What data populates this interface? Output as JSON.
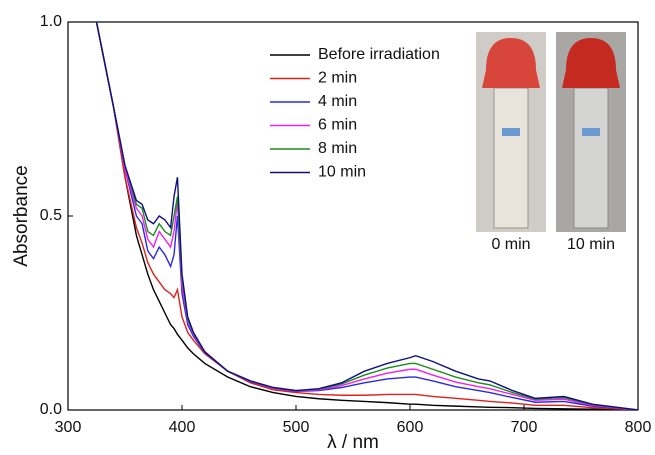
{
  "chart_data": {
    "type": "line",
    "x_label": "λ / nm",
    "y_label": "Absorbance",
    "xlim": [
      300,
      800
    ],
    "xticks": [
      300,
      400,
      500,
      600,
      700,
      800
    ],
    "ylim": [
      0,
      1
    ],
    "yticks": [
      {
        "value": 0,
        "label": "0.0"
      },
      {
        "value": 0.5,
        "label": "0.5"
      },
      {
        "value": 1,
        "label": "1.0"
      }
    ],
    "legend": "top",
    "x": [
      325,
      340,
      350,
      360,
      365,
      370,
      375,
      380,
      385,
      390,
      393,
      396,
      400,
      405,
      410,
      420,
      440,
      460,
      480,
      500,
      520,
      540,
      560,
      580,
      600,
      605,
      620,
      640,
      660,
      670,
      690,
      710,
      735,
      760,
      800
    ],
    "series": [
      {
        "name": "Before irradiation",
        "color": "#000000",
        "values": [
          1.0,
          0.78,
          0.6,
          0.45,
          0.4,
          0.35,
          0.31,
          0.28,
          0.25,
          0.22,
          0.21,
          0.195,
          0.18,
          0.16,
          0.145,
          0.12,
          0.085,
          0.06,
          0.045,
          0.035,
          0.029,
          0.025,
          0.022,
          0.019,
          0.015,
          0.015,
          0.012,
          0.01,
          0.008,
          0.007,
          0.006,
          0.004,
          0.003,
          0.002,
          0
        ]
      },
      {
        "name": "2 min",
        "color": "#e0201c",
        "values": [
          1.0,
          0.78,
          0.6,
          0.47,
          0.43,
          0.38,
          0.35,
          0.33,
          0.31,
          0.3,
          0.29,
          0.31,
          0.24,
          0.2,
          0.18,
          0.145,
          0.1,
          0.07,
          0.052,
          0.045,
          0.04,
          0.038,
          0.038,
          0.04,
          0.04,
          0.04,
          0.035,
          0.03,
          0.025,
          0.022,
          0.018,
          0.012,
          0.012,
          0.006,
          0
        ]
      },
      {
        "name": "4 min",
        "color": "#2a2ae0",
        "values": [
          1.0,
          0.78,
          0.62,
          0.5,
          0.48,
          0.41,
          0.39,
          0.42,
          0.4,
          0.37,
          0.4,
          0.5,
          0.3,
          0.22,
          0.19,
          0.148,
          0.1,
          0.073,
          0.056,
          0.048,
          0.05,
          0.058,
          0.07,
          0.08,
          0.085,
          0.085,
          0.075,
          0.06,
          0.05,
          0.045,
          0.032,
          0.02,
          0.022,
          0.01,
          0
        ]
      },
      {
        "name": "6 min",
        "color": "#f020f0",
        "values": [
          1.0,
          0.78,
          0.62,
          0.52,
          0.5,
          0.44,
          0.42,
          0.46,
          0.44,
          0.42,
          0.46,
          0.54,
          0.32,
          0.23,
          0.195,
          0.15,
          0.1,
          0.074,
          0.057,
          0.049,
          0.052,
          0.063,
          0.08,
          0.095,
          0.105,
          0.105,
          0.09,
          0.072,
          0.06,
          0.055,
          0.04,
          0.025,
          0.028,
          0.012,
          0
        ]
      },
      {
        "name": "8 min",
        "color": "#1a8c1a",
        "values": [
          1.0,
          0.78,
          0.63,
          0.53,
          0.52,
          0.46,
          0.45,
          0.48,
          0.46,
          0.45,
          0.5,
          0.55,
          0.34,
          0.235,
          0.198,
          0.15,
          0.1,
          0.075,
          0.058,
          0.05,
          0.054,
          0.067,
          0.09,
          0.108,
          0.12,
          0.12,
          0.105,
          0.085,
          0.07,
          0.065,
          0.045,
          0.028,
          0.032,
          0.014,
          0
        ]
      },
      {
        "name": "10 min",
        "color": "#101080",
        "values": [
          1.0,
          0.78,
          0.63,
          0.54,
          0.53,
          0.49,
          0.48,
          0.5,
          0.49,
          0.47,
          0.55,
          0.6,
          0.35,
          0.24,
          0.2,
          0.15,
          0.1,
          0.075,
          0.058,
          0.05,
          0.055,
          0.07,
          0.1,
          0.12,
          0.135,
          0.14,
          0.125,
          0.1,
          0.08,
          0.075,
          0.05,
          0.03,
          0.035,
          0.015,
          0
        ]
      }
    ],
    "inset_labels": [
      "0 min",
      "10 min"
    ]
  }
}
